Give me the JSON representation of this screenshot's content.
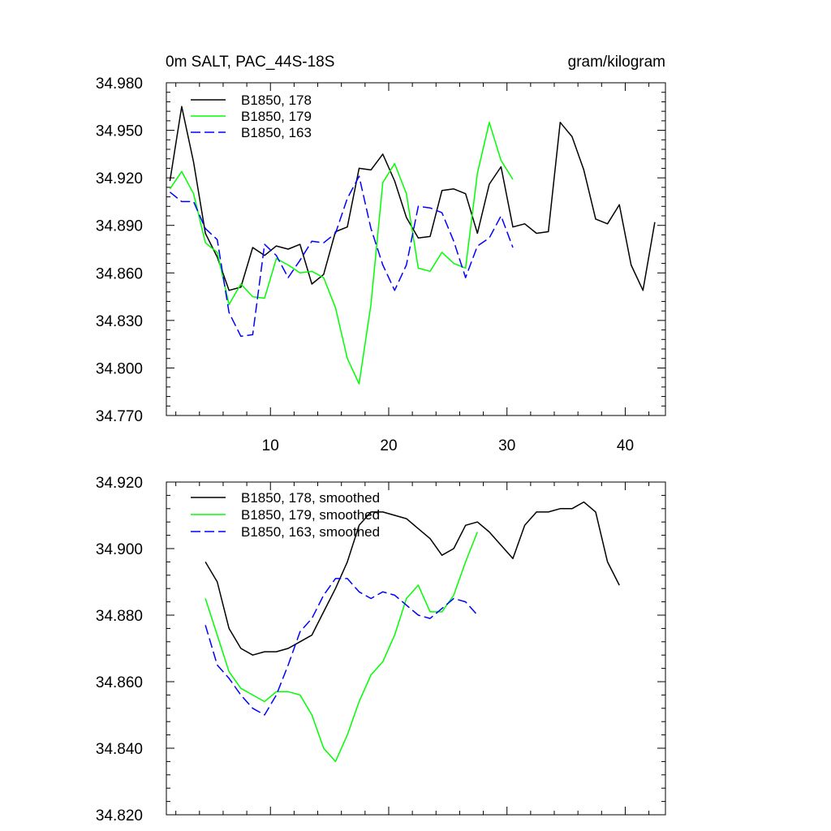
{
  "chart_data": [
    {
      "type": "line",
      "title_left": "0m SALT, PAC_44S-18S",
      "title_right": "gram/kilogram",
      "xlabel": "",
      "ylabel": "",
      "xlim": [
        1.2,
        43.4
      ],
      "ylim": [
        34.77,
        34.98
      ],
      "x_ticks": [
        10,
        20,
        30,
        40
      ],
      "x_tick_labels": [
        "10",
        "20",
        "30",
        "40"
      ],
      "y_ticks": [
        34.77,
        34.8,
        34.83,
        34.86,
        34.89,
        34.92,
        34.95,
        34.98
      ],
      "y_tick_labels": [
        "34.770",
        "34.800",
        "34.830",
        "34.860",
        "34.890",
        "34.920",
        "34.950",
        "34.980"
      ],
      "legend_position": "top-left",
      "series": [
        {
          "name": "B1850, 178",
          "color": "#000000",
          "dash": "solid",
          "x": [
            1.5,
            2.5,
            3.5,
            4.5,
            5.5,
            6.5,
            7.5,
            8.5,
            9.5,
            10.5,
            11.5,
            12.5,
            13.5,
            14.5,
            15.5,
            16.5,
            17.5,
            18.5,
            19.5,
            20.5,
            21.5,
            22.5,
            23.5,
            24.5,
            25.5,
            26.5,
            27.5,
            28.5,
            29.5,
            30.5,
            31.5,
            32.5,
            33.5,
            34.5,
            35.5,
            36.5,
            37.5,
            38.5,
            39.5,
            40.5,
            41.5,
            42.5
          ],
          "values": [
            34.918,
            34.965,
            34.93,
            34.885,
            34.87,
            34.849,
            34.851,
            34.876,
            34.871,
            34.877,
            34.875,
            34.878,
            34.853,
            34.859,
            34.886,
            34.889,
            34.926,
            34.925,
            34.935,
            34.918,
            34.895,
            34.882,
            34.883,
            34.912,
            34.913,
            34.91,
            34.885,
            34.916,
            34.927,
            34.889,
            34.891,
            34.885,
            34.886,
            34.955,
            34.946,
            34.925,
            34.894,
            34.891,
            34.903,
            34.865,
            34.849,
            34.892
          ]
        },
        {
          "name": "B1850, 179",
          "color": "#00ff00",
          "dash": "solid",
          "x": [
            1.5,
            2.5,
            3.5,
            4.5,
            5.5,
            6.5,
            7.5,
            8.5,
            9.5,
            10.5,
            11.5,
            12.5,
            13.5,
            14.5,
            15.5,
            16.5,
            17.5,
            18.5,
            19.5,
            20.5,
            21.5,
            22.5,
            23.5,
            24.5,
            25.5,
            26.5,
            27.5,
            28.5,
            29.5,
            30.5
          ],
          "values": [
            34.913,
            34.924,
            34.91,
            34.879,
            34.873,
            34.84,
            34.853,
            34.845,
            34.844,
            34.869,
            34.865,
            34.86,
            34.861,
            34.857,
            34.838,
            34.806,
            34.79,
            34.84,
            34.917,
            34.929,
            34.91,
            34.863,
            34.861,
            34.873,
            34.866,
            34.863,
            34.923,
            34.955,
            34.931,
            34.919
          ]
        },
        {
          "name": "B1850, 163",
          "color": "#0000ff",
          "dash": "dashed",
          "x": [
            1.5,
            2.5,
            3.5,
            4.5,
            5.5,
            6.5,
            7.5,
            8.5,
            9.5,
            10.5,
            11.5,
            12.5,
            13.5,
            14.5,
            15.5,
            16.5,
            17.5,
            18.5,
            19.5,
            20.5,
            21.5,
            22.5,
            23.5,
            24.5,
            25.5,
            26.5,
            27.5,
            28.5,
            29.5,
            30.5
          ],
          "values": [
            34.911,
            34.905,
            34.905,
            34.888,
            34.881,
            34.835,
            34.82,
            34.821,
            34.878,
            34.871,
            34.857,
            34.868,
            34.88,
            34.879,
            34.885,
            34.907,
            34.921,
            34.888,
            34.865,
            34.849,
            34.865,
            34.902,
            34.901,
            34.898,
            34.88,
            34.857,
            34.877,
            34.882,
            34.896,
            34.876
          ]
        }
      ]
    },
    {
      "type": "line",
      "xlabel": "",
      "ylabel": "",
      "xlim": [
        1.2,
        43.4
      ],
      "ylim": [
        34.82,
        34.92
      ],
      "x_ticks": [
        10,
        20,
        30,
        40
      ],
      "y_ticks": [
        34.82,
        34.84,
        34.86,
        34.88,
        34.9,
        34.92
      ],
      "y_tick_labels": [
        "34.820",
        "34.840",
        "34.860",
        "34.880",
        "34.900",
        "34.920"
      ],
      "legend_position": "top-left",
      "series": [
        {
          "name": "B1850, 178, smoothed",
          "color": "#000000",
          "dash": "solid",
          "x": [
            4.5,
            5.5,
            6.5,
            7.5,
            8.5,
            9.5,
            10.5,
            11.5,
            12.5,
            13.5,
            14.5,
            15.5,
            16.5,
            17.5,
            18.5,
            19.5,
            20.5,
            21.5,
            22.5,
            23.5,
            24.5,
            25.5,
            26.5,
            27.5,
            28.5,
            29.5,
            30.5,
            31.5,
            32.5,
            33.5,
            34.5,
            35.5,
            36.5,
            37.5,
            38.5,
            39.5
          ],
          "values": [
            34.896,
            34.89,
            34.876,
            34.87,
            34.868,
            34.869,
            34.869,
            34.87,
            34.872,
            34.874,
            34.881,
            34.888,
            34.896,
            34.907,
            34.911,
            34.911,
            34.91,
            34.909,
            34.906,
            34.903,
            34.898,
            34.9,
            34.907,
            34.908,
            34.905,
            34.901,
            34.897,
            34.907,
            34.911,
            34.911,
            34.912,
            34.912,
            34.914,
            34.911,
            34.896,
            34.889
          ]
        },
        {
          "name": "B1850, 179, smoothed",
          "color": "#00ff00",
          "dash": "solid",
          "x": [
            4.5,
            5.5,
            6.5,
            7.5,
            8.5,
            9.5,
            10.5,
            11.5,
            12.5,
            13.5,
            14.5,
            15.5,
            16.5,
            17.5,
            18.5,
            19.5,
            20.5,
            21.5,
            22.5,
            23.5,
            24.5,
            25.5,
            26.5,
            27.5
          ],
          "values": [
            34.885,
            34.874,
            34.863,
            34.858,
            34.856,
            34.854,
            34.857,
            34.857,
            34.856,
            34.85,
            34.84,
            34.836,
            34.844,
            34.854,
            34.862,
            34.866,
            34.874,
            34.885,
            34.889,
            34.881,
            34.881,
            34.886,
            34.896,
            34.905
          ]
        },
        {
          "name": "B1850, 163, smoothed",
          "color": "#0000ff",
          "dash": "dashed",
          "x": [
            4.5,
            5.5,
            6.5,
            7.5,
            8.5,
            9.5,
            10.5,
            11.5,
            12.5,
            13.5,
            14.5,
            15.5,
            16.5,
            17.5,
            18.5,
            19.5,
            20.5,
            21.5,
            22.5,
            23.5,
            24.5,
            25.5,
            26.5,
            27.5
          ],
          "values": [
            34.877,
            34.865,
            34.861,
            34.856,
            34.852,
            34.85,
            34.856,
            34.865,
            34.875,
            34.879,
            34.886,
            34.891,
            34.891,
            34.887,
            34.885,
            34.887,
            34.886,
            34.883,
            34.88,
            34.879,
            34.882,
            34.885,
            34.884,
            34.88
          ]
        }
      ]
    }
  ]
}
